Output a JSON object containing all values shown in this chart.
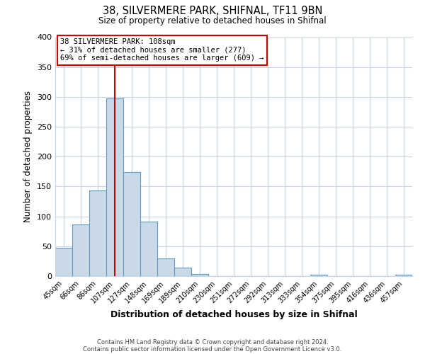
{
  "title": "38, SILVERMERE PARK, SHIFNAL, TF11 9BN",
  "subtitle": "Size of property relative to detached houses in Shifnal",
  "xlabel": "Distribution of detached houses by size in Shifnal",
  "ylabel": "Number of detached properties",
  "footnote1": "Contains HM Land Registry data © Crown copyright and database right 2024.",
  "footnote2": "Contains public sector information licensed under the Open Government Licence v3.0.",
  "bin_labels": [
    "45sqm",
    "66sqm",
    "86sqm",
    "107sqm",
    "127sqm",
    "148sqm",
    "169sqm",
    "189sqm",
    "210sqm",
    "230sqm",
    "251sqm",
    "272sqm",
    "292sqm",
    "313sqm",
    "333sqm",
    "354sqm",
    "375sqm",
    "395sqm",
    "416sqm",
    "436sqm",
    "457sqm"
  ],
  "bar_heights": [
    47,
    86,
    144,
    297,
    174,
    91,
    30,
    14,
    4,
    0,
    0,
    0,
    0,
    0,
    0,
    2,
    0,
    0,
    0,
    0,
    2
  ],
  "bar_color": "#c9d9e8",
  "bar_edge_color": "#5b9ec9",
  "vline_x_index": 3,
  "vline_color": "#cc0000",
  "annotation_text": "38 SILVERMERE PARK: 108sqm\n← 31% of detached houses are smaller (277)\n69% of semi-detached houses are larger (609) →",
  "annotation_box_color": "#ffffff",
  "annotation_box_edge_color": "#cc0000",
  "ylim": [
    0,
    400
  ],
  "yticks": [
    0,
    50,
    100,
    150,
    200,
    250,
    300,
    350,
    400
  ],
  "bg_color": "#ffffff",
  "grid_color": "#c8d4e0"
}
